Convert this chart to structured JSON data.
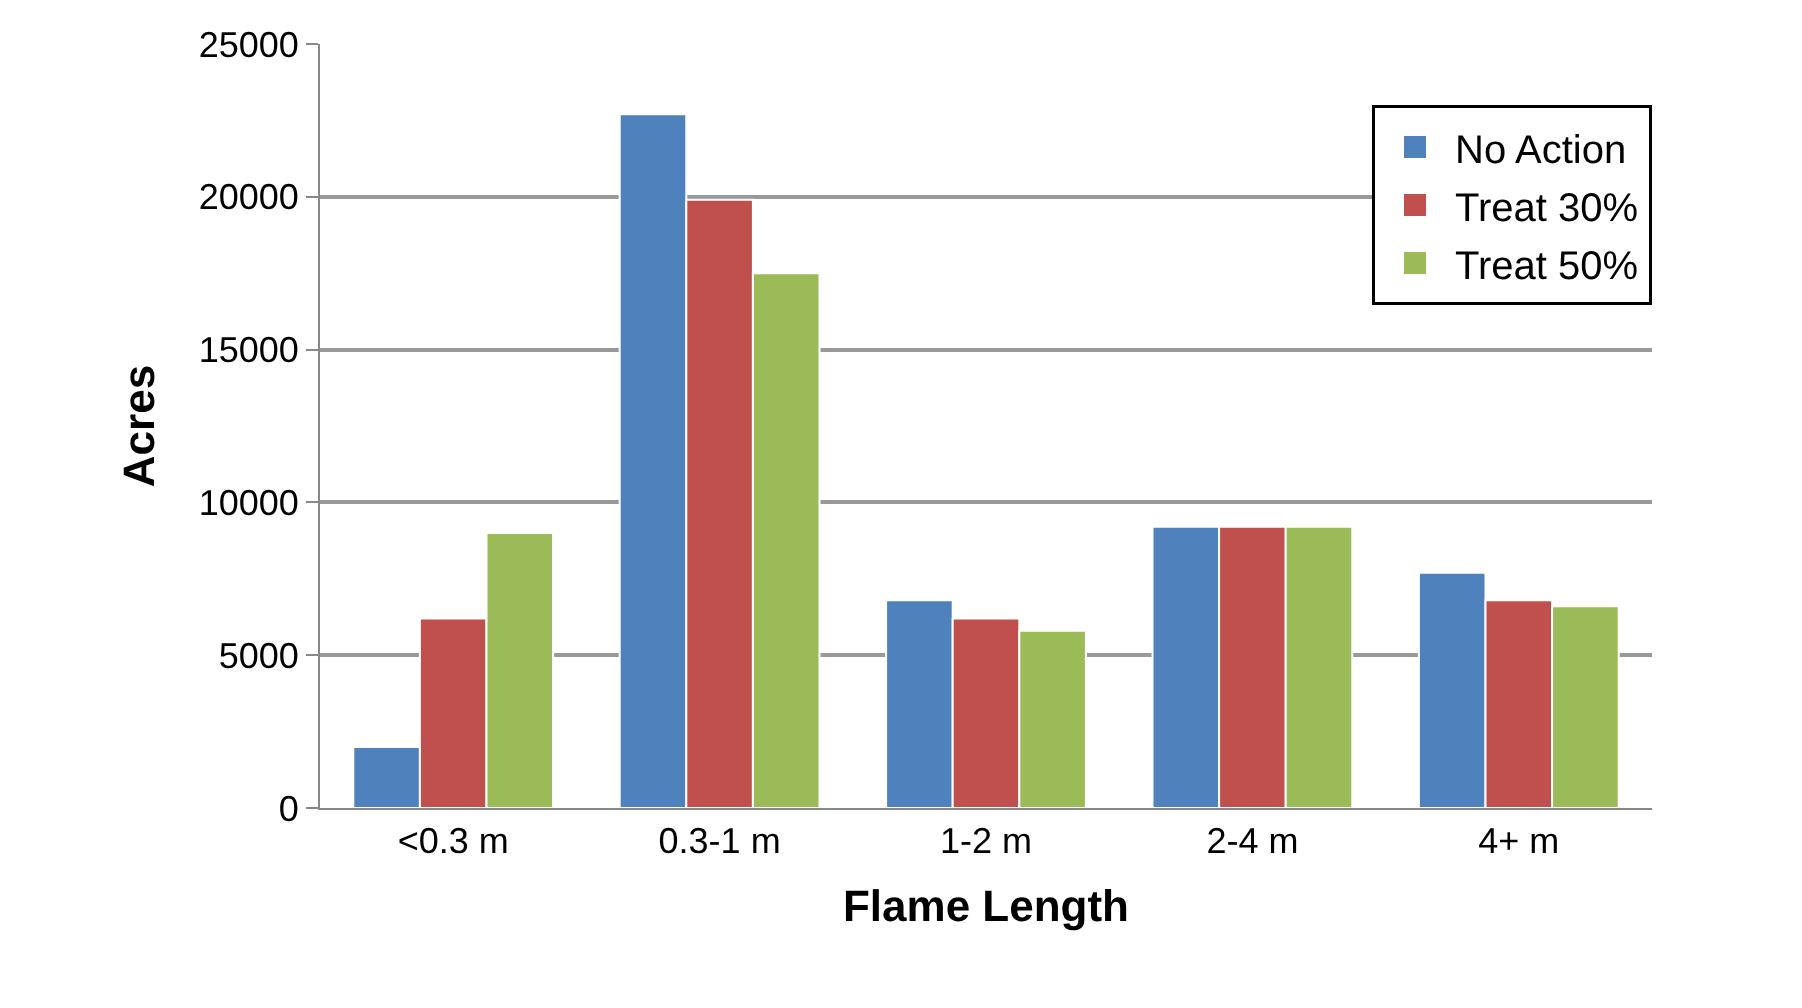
{
  "chart_data": {
    "type": "bar",
    "xlabel": "Flame Length",
    "ylabel": "Acres",
    "categories": [
      "<0.3 m",
      "0.3-1 m",
      "1-2 m",
      "2-4 m",
      "4+ m"
    ],
    "series": [
      {
        "name": "No Action",
        "color": "#4f81bd",
        "values": [
          2000,
          22700,
          6800,
          9200,
          7700
        ]
      },
      {
        "name": "Treat 30%",
        "color": "#c0504d",
        "values": [
          6200,
          19900,
          6200,
          9200,
          6800
        ]
      },
      {
        "name": "Treat 50%",
        "color": "#9bbb59",
        "values": [
          9000,
          17500,
          5800,
          9200,
          6600
        ]
      }
    ],
    "ylim": [
      0,
      25000
    ],
    "yticks": [
      0,
      5000,
      10000,
      15000,
      20000,
      25000
    ],
    "grid": "y",
    "legend": "top right"
  }
}
